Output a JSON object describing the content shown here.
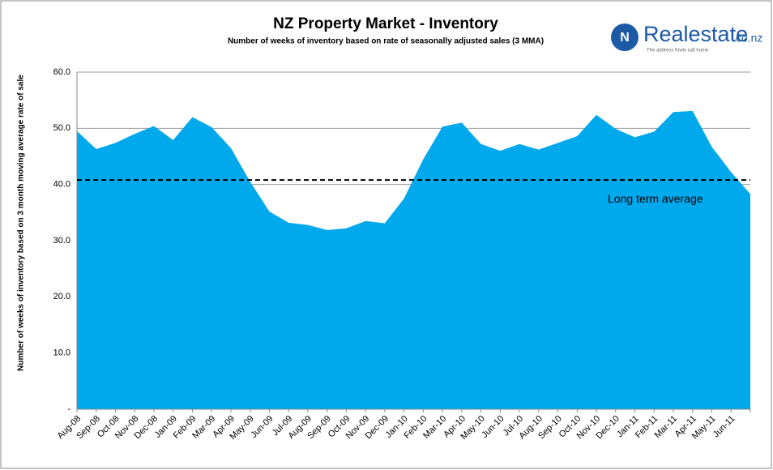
{
  "chart_data": {
    "type": "area",
    "title": "NZ Property Market - Inventory",
    "subtitle": "Number of weeks of inventory based on rate of seasonally  adjusted sales (3 MMA)",
    "y_label": "Number of weeks of inventory based on 3 month moving average rate of sale",
    "logo": {
      "name": "Realestate",
      "suffix": ".co.nz",
      "tagline": "The address Kiwis call home"
    },
    "categories": [
      "Aug-08",
      "Sep-08",
      "Oct-08",
      "Nov-08",
      "Dec-08",
      "Jan-09",
      "Feb-09",
      "Mar-09",
      "Apr-09",
      "May-09",
      "Jun-09",
      "Jul-09",
      "Aug-09",
      "Sep-09",
      "Oct-09",
      "Nov-09",
      "Dec-09",
      "Jan-10",
      "Feb-10",
      "Mar-10",
      "Apr-10",
      "May-10",
      "Jun-10",
      "Jul-10",
      "Aug-10",
      "Sep-10",
      "Oct-10",
      "Nov-10",
      "Dec-10",
      "Jan-11",
      "Feb-11",
      "Mar-11",
      "Apr-11",
      "May-11",
      "Jun-11",
      null
    ],
    "series": [
      {
        "name": "Weeks of inventory",
        "color": "#00a8ec",
        "values": [
          49.5,
          46.3,
          47.4,
          49.0,
          50.4,
          47.9,
          52.0,
          50.2,
          46.5,
          40.5,
          35.2,
          33.2,
          32.8,
          31.9,
          32.2,
          33.5,
          33.1,
          37.5,
          44.5,
          50.3,
          51.0,
          47.2,
          46.0,
          47.2,
          46.2,
          47.4,
          48.6,
          52.4,
          49.9,
          48.4,
          49.4,
          52.9,
          53.1,
          46.7,
          42.2,
          38.3
        ]
      }
    ],
    "reference_line": {
      "label": "Long term average",
      "value": 40.8,
      "color": "#000000"
    },
    "ylim": [
      0,
      60
    ],
    "yticks": [
      {
        "value": 0,
        "label": "-"
      },
      {
        "value": 10,
        "label": "10.0"
      },
      {
        "value": 20,
        "label": "20.0"
      },
      {
        "value": 30,
        "label": "30.0"
      },
      {
        "value": 40,
        "label": "40.0"
      },
      {
        "value": 50,
        "label": "50.0"
      },
      {
        "value": 60,
        "label": "60.0"
      }
    ],
    "grid": true
  }
}
